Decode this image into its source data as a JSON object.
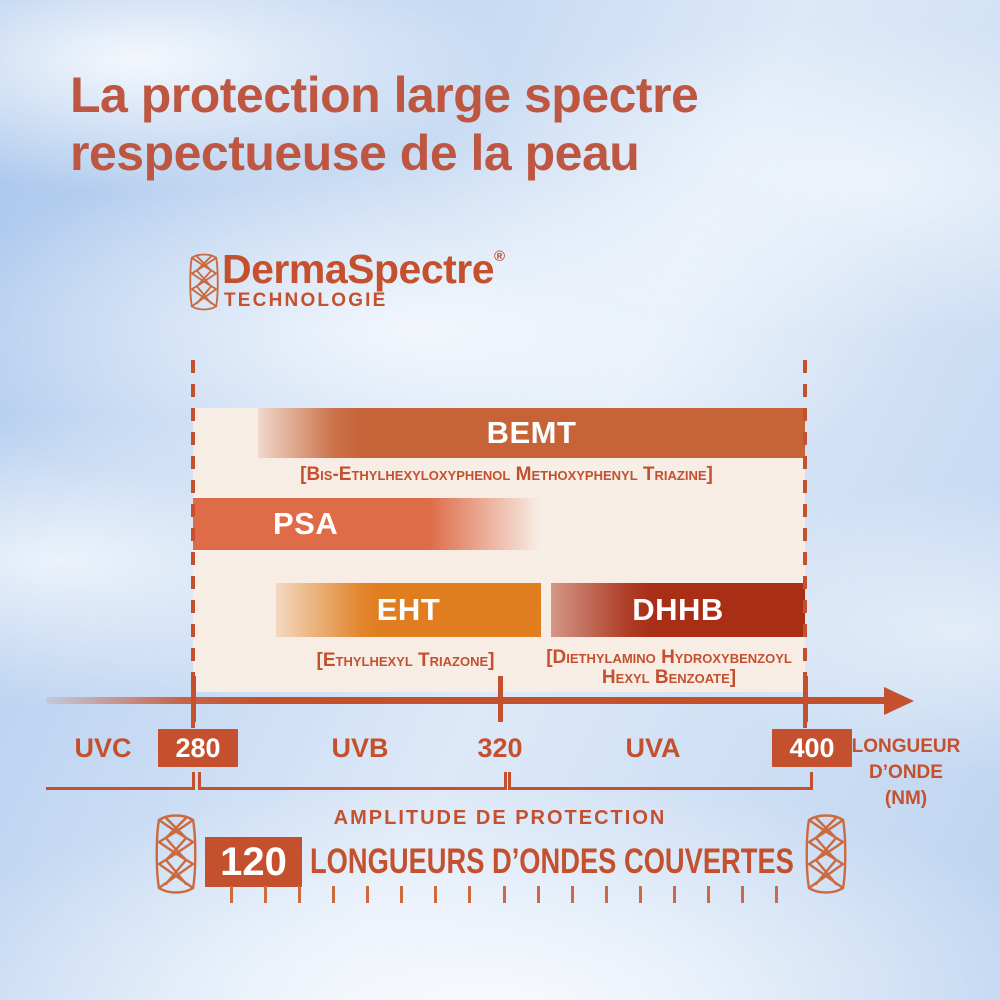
{
  "title": {
    "line1": "La protection large spectre",
    "line2": "respectueuse de la peau"
  },
  "logo": {
    "brand": "DermaSpectre",
    "registered": "®",
    "subtitle": "TECHNOLOGIE"
  },
  "colors": {
    "rust": "#c4502e",
    "title": "#bd5742",
    "bemt": "#c66438",
    "psa": "#de6c49",
    "eht": "#e07d1e",
    "dhhb": "#a82e16",
    "panel": "#f8ede4"
  },
  "chart_data": {
    "type": "bar",
    "title": "DermaSpectre Technologie — spectre de protection des filtres UV",
    "xlabel": "LONGUEUR D’ONDE (NM)",
    "x_ticks": [
      280,
      320,
      400
    ],
    "x_bands": [
      {
        "label": "UVC",
        "range_nm": [
          null,
          280
        ]
      },
      {
        "label": "UVB",
        "range_nm": [
          280,
          320
        ]
      },
      {
        "label": "UVA",
        "range_nm": [
          320,
          400
        ]
      }
    ],
    "filters": [
      {
        "label": "BEMT",
        "caption": "[Bis-Ethylhexyloxyphenol Methoxyphenyl Triazine]",
        "start_nm": 288,
        "end_nm": 400,
        "fade": "left",
        "color": "#c66438"
      },
      {
        "label": "PSA",
        "start_nm": 280,
        "end_nm": 325,
        "fade": "right",
        "color": "#de6c49"
      },
      {
        "label": "EHT",
        "caption": "[Ethylhexyl Triazone]",
        "start_nm": 291,
        "end_nm": 325,
        "fade": "left",
        "color": "#e07d1e"
      },
      {
        "label": "DHHB",
        "caption_line1": "[Diethylamino Hydroxybenzoyl",
        "caption_line2": "Hexyl Benzoate]",
        "start_nm": 327,
        "end_nm": 400,
        "fade": "left",
        "color": "#a82e16"
      }
    ],
    "legend_position": "none",
    "grid": false
  },
  "axis": {
    "uvc": "UVC",
    "uvb": "UVB",
    "uva": "UVA",
    "tick_280": "280",
    "tick_320": "320",
    "tick_400": "400",
    "unit_line1": "LONGUEUR",
    "unit_line2": "D’ONDE",
    "unit_line3": "(NM)"
  },
  "amplitude": {
    "label": "AMPLITUDE DE PROTECTION",
    "value": "120",
    "text": "LONGUEURS D’ONDES COUVERTES",
    "ruler_tick_count": 17
  }
}
